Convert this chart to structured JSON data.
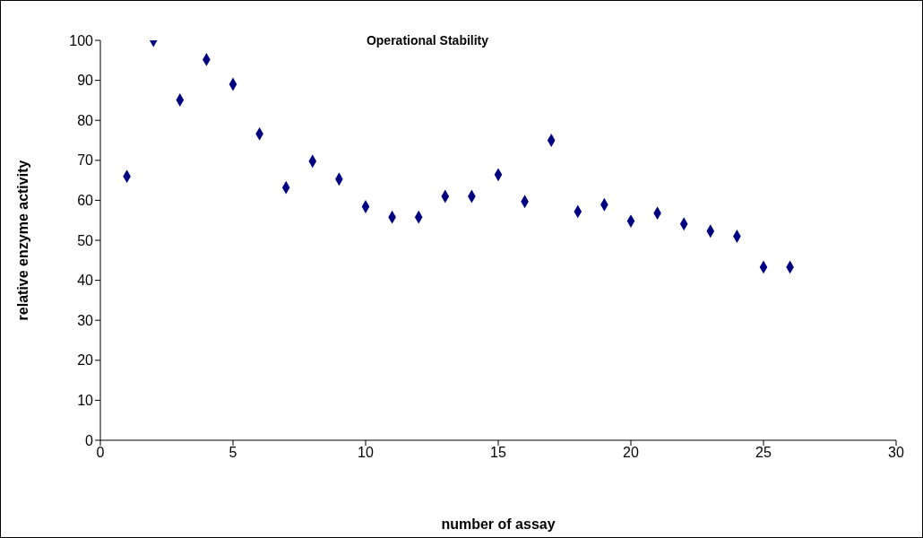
{
  "chart_data": {
    "type": "scatter",
    "title": "Operational Stability",
    "xlabel": "number of assay",
    "ylabel": "relative enzyme activity",
    "x": [
      1,
      2,
      3,
      4,
      5,
      6,
      7,
      8,
      9,
      10,
      11,
      12,
      13,
      14,
      15,
      16,
      17,
      18,
      19,
      20,
      21,
      22,
      23,
      24,
      25,
      26
    ],
    "values": [
      66,
      100,
      85.1,
      95.2,
      89,
      76.6,
      63.2,
      69.8,
      65.3,
      58.4,
      55.8,
      55.8,
      61,
      61,
      66.4,
      59.7,
      75,
      57.2,
      58.9,
      54.8,
      56.8,
      54.1,
      52.3,
      51,
      43.3,
      43.3
    ],
    "color": "#000080",
    "marker": "diamond",
    "grid": false,
    "legend": false,
    "xlim": [
      0,
      30
    ],
    "xticks": [
      0,
      5,
      10,
      15,
      20,
      25,
      30
    ],
    "ylim": [
      0,
      100
    ],
    "yticks": [
      0,
      10,
      20,
      30,
      40,
      50,
      60,
      70,
      80,
      90,
      100
    ]
  }
}
